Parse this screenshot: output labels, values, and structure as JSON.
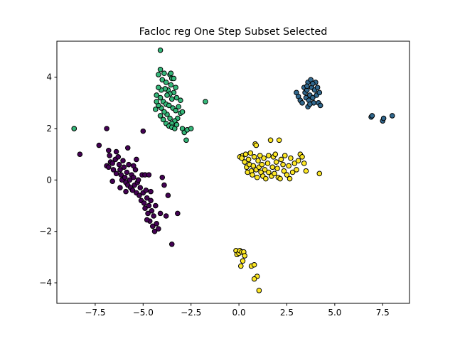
{
  "chart_data": {
    "type": "scatter",
    "title": "Facloc reg One Step Subset Selected",
    "xlabel": "",
    "ylabel": "",
    "xlim": [
      -9.5,
      8.9
    ],
    "ylim": [
      -4.8,
      5.4
    ],
    "x_ticks": [
      -7.5,
      -5.0,
      -2.5,
      0.0,
      2.5,
      5.0,
      7.5
    ],
    "x_tick_labels": [
      "−7.5",
      "−5.0",
      "−2.5",
      "0.0",
      "2.5",
      "5.0",
      "7.5"
    ],
    "y_ticks": [
      -4,
      -2,
      0,
      2,
      4
    ],
    "y_tick_labels": [
      "−4",
      "−2",
      "0",
      "2",
      "4"
    ],
    "grid": false,
    "legend": "none",
    "series": [
      {
        "color": "#440154",
        "points": [
          [
            -8.6,
            2.0
          ],
          [
            -8.3,
            1.0
          ],
          [
            -7.3,
            1.35
          ],
          [
            -6.9,
            2.0
          ],
          [
            -6.8,
            1.15
          ],
          [
            -6.75,
            0.95
          ],
          [
            -6.7,
            0.7
          ],
          [
            -6.9,
            0.55
          ],
          [
            -6.8,
            0.5
          ],
          [
            -6.6,
            0.65
          ],
          [
            -6.55,
            0.4
          ],
          [
            -6.45,
            0.8
          ],
          [
            -6.4,
            1.1
          ],
          [
            -6.3,
            0.9
          ],
          [
            -6.25,
            0.6
          ],
          [
            -6.2,
            0.4
          ],
          [
            -6.15,
            0.2
          ],
          [
            -6.1,
            0.0
          ],
          [
            -6.0,
            0.5
          ],
          [
            -5.95,
            0.1
          ],
          [
            -5.9,
            -0.1
          ],
          [
            -5.85,
            0.3
          ],
          [
            -5.8,
            -0.2
          ],
          [
            -5.75,
            0.6
          ],
          [
            -5.7,
            0.0
          ],
          [
            -5.65,
            -0.3
          ],
          [
            -5.6,
            0.2
          ],
          [
            -5.55,
            -0.4
          ],
          [
            -5.5,
            0.1
          ],
          [
            -5.45,
            -0.2
          ],
          [
            -5.4,
            0.4
          ],
          [
            -5.35,
            -0.5
          ],
          [
            -5.3,
            -0.1
          ],
          [
            -5.25,
            0.0
          ],
          [
            -5.2,
            -0.6
          ],
          [
            -5.15,
            -0.3
          ],
          [
            -5.1,
            -0.8
          ],
          [
            -5.05,
            0.2
          ],
          [
            -5.0,
            -0.5
          ],
          [
            -4.95,
            -0.9
          ],
          [
            -4.9,
            -1.1
          ],
          [
            -4.85,
            -0.4
          ],
          [
            -4.8,
            -0.7
          ],
          [
            -4.75,
            -1.3
          ],
          [
            -4.7,
            -1.0
          ],
          [
            -4.65,
            -1.6
          ],
          [
            -4.6,
            -0.8
          ],
          [
            -4.55,
            -1.2
          ],
          [
            -4.5,
            -1.8
          ],
          [
            -4.45,
            -1.4
          ],
          [
            -4.4,
            -2.0
          ],
          [
            -4.35,
            -1.0
          ],
          [
            -4.3,
            -1.7
          ],
          [
            -4.2,
            -1.9
          ],
          [
            -4.1,
            -1.3
          ],
          [
            -4.0,
            0.1
          ],
          [
            -3.9,
            -0.2
          ],
          [
            -3.8,
            -1.4
          ],
          [
            -3.7,
            -0.6
          ],
          [
            -3.5,
            -2.5
          ],
          [
            -3.2,
            -1.3
          ],
          [
            -5.8,
            1.25
          ],
          [
            -5.5,
            0.55
          ],
          [
            -5.0,
            1.9
          ],
          [
            -4.9,
            0.2
          ],
          [
            -4.7,
            0.2
          ],
          [
            -6.6,
            -0.05
          ],
          [
            -6.2,
            -0.3
          ],
          [
            -5.9,
            -0.45
          ],
          [
            -4.6,
            -0.45
          ],
          [
            -4.8,
            -1.55
          ],
          [
            -6.05,
            0.75
          ],
          [
            -5.35,
            0.8
          ],
          [
            -6.4,
            0.25
          ]
        ]
      },
      {
        "color": "#31688e",
        "points": [
          [
            3.0,
            3.4
          ],
          [
            3.1,
            3.25
          ],
          [
            3.2,
            3.1
          ],
          [
            3.3,
            3.0
          ],
          [
            3.4,
            3.6
          ],
          [
            3.45,
            3.4
          ],
          [
            3.5,
            3.2
          ],
          [
            3.55,
            3.5
          ],
          [
            3.6,
            3.8
          ],
          [
            3.65,
            3.1
          ],
          [
            3.7,
            3.3
          ],
          [
            3.75,
            3.9
          ],
          [
            3.8,
            3.6
          ],
          [
            3.85,
            3.2
          ],
          [
            3.9,
            3.0
          ],
          [
            3.95,
            3.5
          ],
          [
            4.0,
            3.8
          ],
          [
            4.05,
            3.3
          ],
          [
            4.1,
            3.6
          ],
          [
            4.15,
            3.0
          ],
          [
            4.2,
            3.4
          ],
          [
            4.25,
            2.9
          ],
          [
            3.6,
            2.85
          ],
          [
            3.85,
            3.75
          ],
          [
            3.55,
            3.65
          ],
          [
            3.7,
            2.95
          ],
          [
            6.9,
            2.45
          ],
          [
            6.95,
            2.5
          ],
          [
            7.5,
            2.3
          ],
          [
            7.55,
            2.4
          ],
          [
            8.0,
            2.5
          ]
        ]
      },
      {
        "color": "#35b779",
        "points": [
          [
            -4.1,
            5.05
          ],
          [
            -4.1,
            4.3
          ],
          [
            -4.2,
            4.1
          ],
          [
            -4.0,
            3.9
          ],
          [
            -3.9,
            4.15
          ],
          [
            -3.8,
            3.8
          ],
          [
            -3.6,
            4.1
          ],
          [
            -3.5,
            3.95
          ],
          [
            -3.55,
            3.7
          ],
          [
            -3.7,
            3.5
          ],
          [
            -3.4,
            3.4
          ],
          [
            -3.3,
            3.6
          ],
          [
            -3.25,
            3.2
          ],
          [
            -3.5,
            3.15
          ],
          [
            -3.6,
            3.35
          ],
          [
            -3.75,
            3.3
          ],
          [
            -3.85,
            3.55
          ],
          [
            -4.05,
            3.5
          ],
          [
            -4.2,
            3.6
          ],
          [
            -4.3,
            3.3
          ],
          [
            -4.1,
            3.2
          ],
          [
            -3.95,
            3.05
          ],
          [
            -3.8,
            2.95
          ],
          [
            -3.65,
            2.9
          ],
          [
            -3.45,
            2.8
          ],
          [
            -3.3,
            2.7
          ],
          [
            -3.15,
            2.85
          ],
          [
            -3.05,
            2.6
          ],
          [
            -3.2,
            2.4
          ],
          [
            -3.35,
            2.3
          ],
          [
            -3.5,
            2.2
          ],
          [
            -3.6,
            2.4
          ],
          [
            -3.75,
            2.55
          ],
          [
            -3.9,
            2.65
          ],
          [
            -4.05,
            2.8
          ],
          [
            -4.2,
            2.9
          ],
          [
            -4.3,
            3.05
          ],
          [
            -4.35,
            2.75
          ],
          [
            -4.1,
            2.5
          ],
          [
            -3.95,
            2.35
          ],
          [
            -3.8,
            2.2
          ],
          [
            -3.65,
            2.1
          ],
          [
            -3.5,
            2.05
          ],
          [
            -3.35,
            2.0
          ],
          [
            -3.25,
            2.15
          ],
          [
            -2.95,
            2.65
          ],
          [
            -2.95,
            2.0
          ],
          [
            -2.85,
            1.85
          ],
          [
            -2.75,
            1.55
          ],
          [
            -2.7,
            1.95
          ],
          [
            -2.5,
            2.0
          ],
          [
            -1.75,
            3.05
          ],
          [
            -8.6,
            2.0
          ],
          [
            -3.05,
            3.1
          ],
          [
            -3.4,
            3.95
          ],
          [
            -3.55,
            4.15
          ]
        ]
      },
      {
        "color": "#fde725",
        "points": [
          [
            0.05,
            0.9
          ],
          [
            0.2,
            0.95
          ],
          [
            0.3,
            0.7
          ],
          [
            0.35,
            1.0
          ],
          [
            0.4,
            0.5
          ],
          [
            0.45,
            0.3
          ],
          [
            0.5,
            0.8
          ],
          [
            0.55,
            0.6
          ],
          [
            0.6,
            1.05
          ],
          [
            0.65,
            0.35
          ],
          [
            0.7,
            0.2
          ],
          [
            0.75,
            0.55
          ],
          [
            0.8,
            0.9
          ],
          [
            0.85,
            1.4
          ],
          [
            0.9,
            0.4
          ],
          [
            0.95,
            0.1
          ],
          [
            1.0,
            0.75
          ],
          [
            1.05,
            0.5
          ],
          [
            1.1,
            0.95
          ],
          [
            1.15,
            0.3
          ],
          [
            1.2,
            0.6
          ],
          [
            1.25,
            0.15
          ],
          [
            1.3,
            0.85
          ],
          [
            1.35,
            0.4
          ],
          [
            1.4,
            0.05
          ],
          [
            1.5,
            0.65
          ],
          [
            1.55,
            0.3
          ],
          [
            1.65,
            1.55
          ],
          [
            1.7,
            0.15
          ],
          [
            1.75,
            0.5
          ],
          [
            1.8,
            0.9
          ],
          [
            1.85,
            0.25
          ],
          [
            1.9,
            1.0
          ],
          [
            1.95,
            0.7
          ],
          [
            2.0,
            0.45
          ],
          [
            2.05,
            0.1
          ],
          [
            2.1,
            1.55
          ],
          [
            2.2,
            0.8
          ],
          [
            2.3,
            0.6
          ],
          [
            2.35,
            0.35
          ],
          [
            2.4,
            0.95
          ],
          [
            2.5,
            0.2
          ],
          [
            2.6,
            0.55
          ],
          [
            2.7,
            0.85
          ],
          [
            2.8,
            0.3
          ],
          [
            2.9,
            0.65
          ],
          [
            3.0,
            0.4
          ],
          [
            3.1,
            0.75
          ],
          [
            3.2,
            1.0
          ],
          [
            3.3,
            0.9
          ],
          [
            3.4,
            0.65
          ],
          [
            3.5,
            0.35
          ],
          [
            4.2,
            0.25
          ],
          [
            0.15,
            0.85
          ],
          [
            0.9,
            1.35
          ],
          [
            1.55,
            0.95
          ],
          [
            2.15,
            0.05
          ],
          [
            2.65,
            0.05
          ],
          [
            -0.15,
            -2.75
          ],
          [
            -0.1,
            -2.9
          ],
          [
            0.0,
            -2.85
          ],
          [
            0.05,
            -2.75
          ],
          [
            0.15,
            -2.8
          ],
          [
            0.25,
            -2.8
          ],
          [
            0.3,
            -2.95
          ],
          [
            0.2,
            -3.15
          ],
          [
            0.1,
            -3.35
          ],
          [
            0.65,
            -3.35
          ],
          [
            0.8,
            -3.3
          ],
          [
            0.95,
            -3.75
          ],
          [
            0.8,
            -3.85
          ],
          [
            1.05,
            -4.3
          ]
        ]
      }
    ]
  }
}
